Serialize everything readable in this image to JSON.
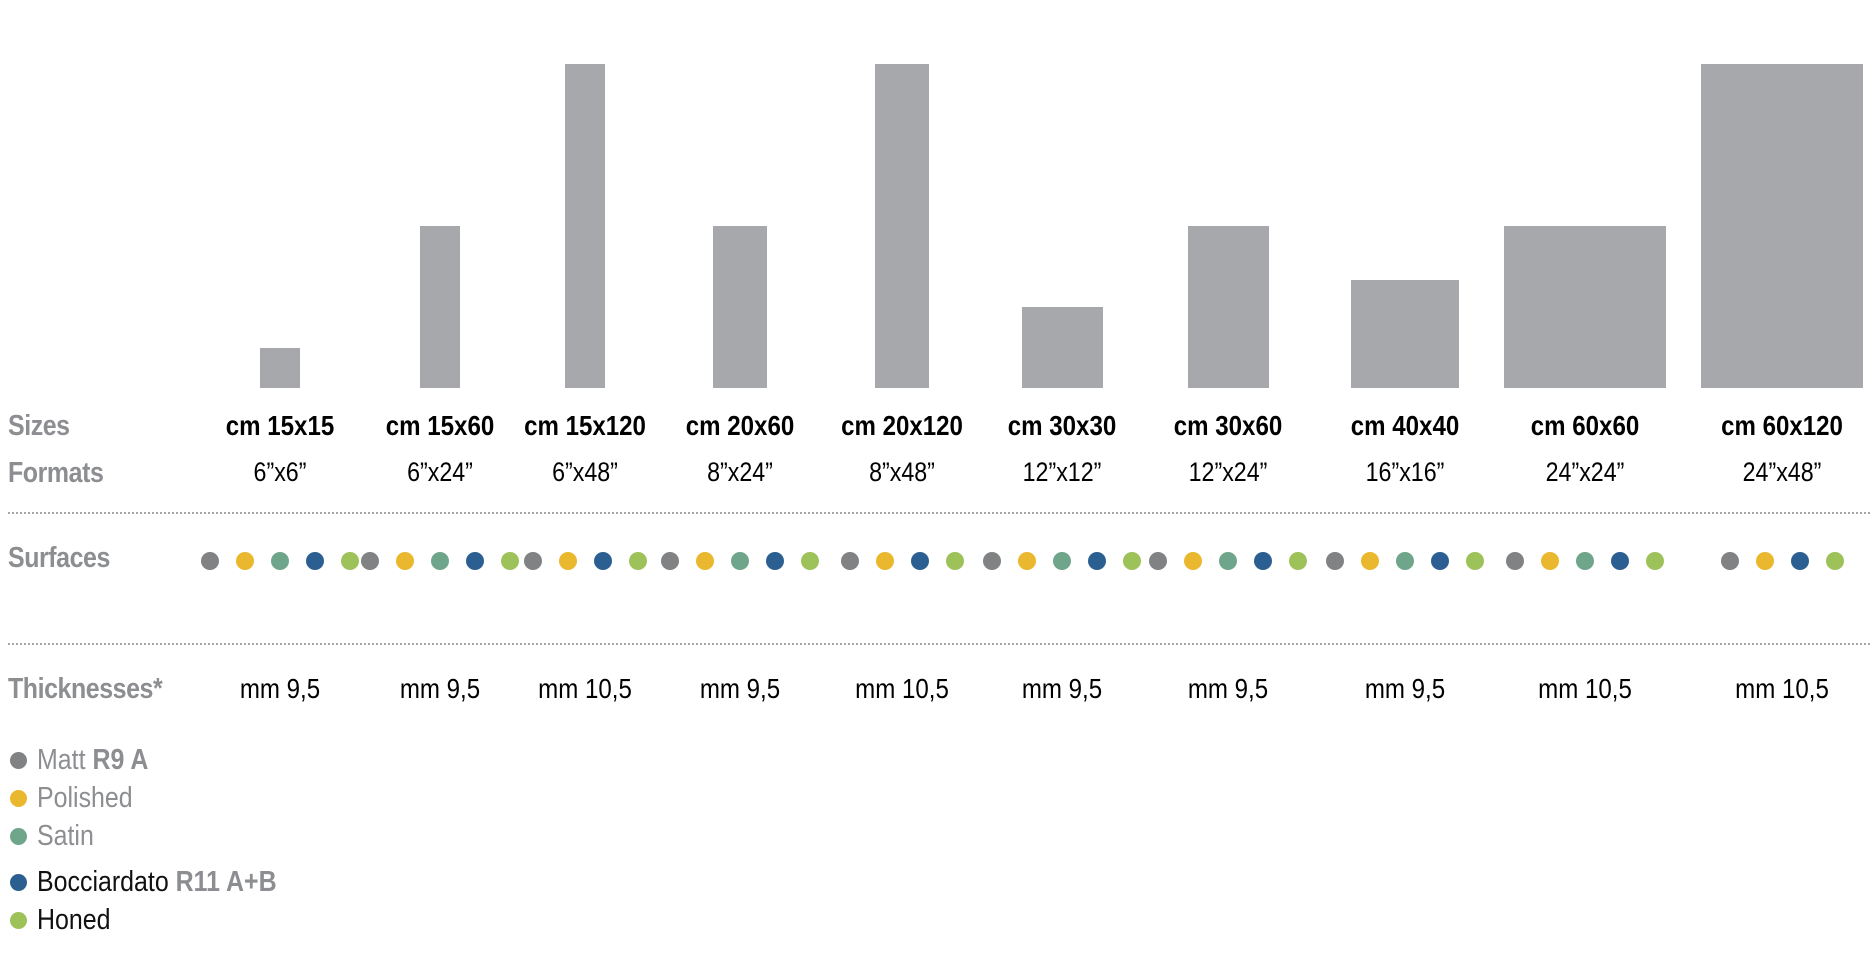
{
  "row_labels": {
    "sizes": "Sizes",
    "formats": "Formats",
    "surfaces": "Surfaces",
    "thicknesses": "Thicknesses*"
  },
  "colors": {
    "bar": "#a6a8ab",
    "label_grey": "#8c8e91",
    "matt": "#808284",
    "polished": "#eab82e",
    "satin": "#6fa58a",
    "bocciardato": "#2c5f91",
    "honed": "#9dc25a"
  },
  "items": [
    {
      "size": "cm 15x15",
      "format": "6”x6”",
      "thickness": "mm 9,5",
      "w_cm": 15,
      "h_cm": 15,
      "surfaces": [
        "matt",
        "polished",
        "satin",
        "bocciardato",
        "honed"
      ]
    },
    {
      "size": "cm 15x60",
      "format": "6”x24”",
      "thickness": "mm 9,5",
      "w_cm": 15,
      "h_cm": 60,
      "surfaces": [
        "matt",
        "polished",
        "satin",
        "bocciardato",
        "honed"
      ]
    },
    {
      "size": "cm 15x120",
      "format": "6”x48”",
      "thickness": "mm 10,5",
      "w_cm": 15,
      "h_cm": 120,
      "surfaces": [
        "matt",
        "polished",
        "bocciardato",
        "honed"
      ]
    },
    {
      "size": "cm 20x60",
      "format": "8”x24”",
      "thickness": "mm 9,5",
      "w_cm": 20,
      "h_cm": 60,
      "surfaces": [
        "matt",
        "polished",
        "satin",
        "bocciardato",
        "honed"
      ]
    },
    {
      "size": "cm 20x120",
      "format": "8”x48”",
      "thickness": "mm 10,5",
      "w_cm": 20,
      "h_cm": 120,
      "surfaces": [
        "matt",
        "polished",
        "bocciardato",
        "honed"
      ]
    },
    {
      "size": "cm 30x30",
      "format": "12”x12”",
      "thickness": "mm 9,5",
      "w_cm": 30,
      "h_cm": 30,
      "surfaces": [
        "matt",
        "polished",
        "satin",
        "bocciardato",
        "honed"
      ]
    },
    {
      "size": "cm 30x60",
      "format": "12”x24”",
      "thickness": "mm 9,5",
      "w_cm": 30,
      "h_cm": 60,
      "surfaces": [
        "matt",
        "polished",
        "satin",
        "bocciardato",
        "honed"
      ]
    },
    {
      "size": "cm 40x40",
      "format": "16”x16”",
      "thickness": "mm 9,5",
      "w_cm": 40,
      "h_cm": 40,
      "surfaces": [
        "matt",
        "polished",
        "satin",
        "bocciardato",
        "honed"
      ]
    },
    {
      "size": "cm 60x60",
      "format": "24”x24”",
      "thickness": "mm 10,5",
      "w_cm": 60,
      "h_cm": 60,
      "surfaces": [
        "matt",
        "polished",
        "satin",
        "bocciardato",
        "honed"
      ]
    },
    {
      "size": "cm 60x120",
      "format": "24”x48”",
      "thickness": "mm 10,5",
      "w_cm": 60,
      "h_cm": 120,
      "surfaces": [
        "matt",
        "polished",
        "bocciardato",
        "honed"
      ]
    }
  ],
  "legend": [
    {
      "key": "matt",
      "name": "Matt",
      "grade": "R9 A"
    },
    {
      "key": "polished",
      "name": "Polished",
      "grade": ""
    },
    {
      "key": "satin",
      "name": "Satin",
      "grade": ""
    },
    {
      "key": "bocciardato",
      "name": "Bocciardato",
      "grade": "R11 A+B"
    },
    {
      "key": "honed",
      "name": "Honed",
      "grade": ""
    }
  ]
}
